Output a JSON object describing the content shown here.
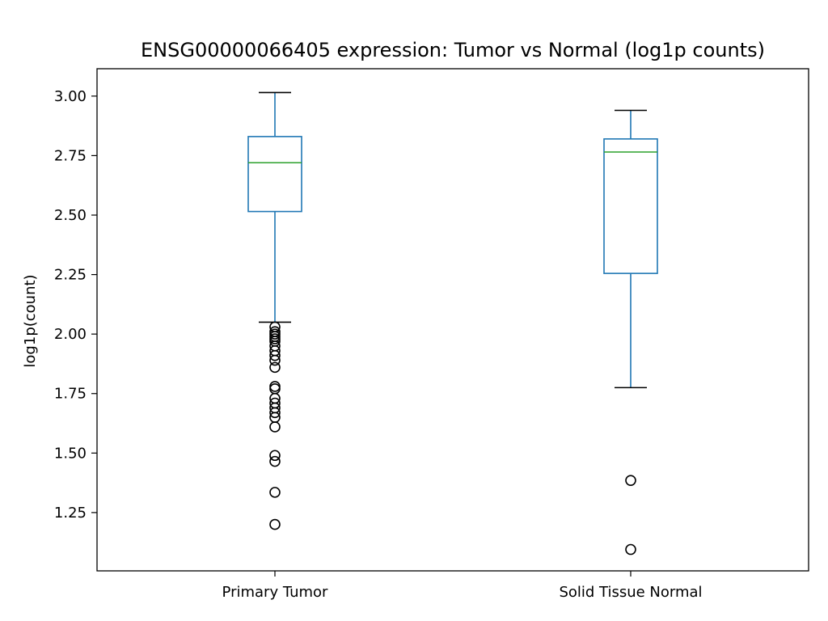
{
  "chart_data": {
    "type": "box",
    "title": "ENSG00000066405 expression: Tumor vs Normal (log1p counts)",
    "xlabel": "",
    "ylabel": "log1p(count)",
    "ylim": [
      1.005,
      3.115
    ],
    "yticks": [
      1.25,
      1.5,
      1.75,
      2.0,
      2.25,
      2.5,
      2.75,
      3.0
    ],
    "ytick_labels": [
      "1.25",
      "1.50",
      "1.75",
      "2.00",
      "2.25",
      "2.50",
      "2.75",
      "3.00"
    ],
    "grid": false,
    "categories": [
      "Primary Tumor",
      "Solid Tissue Normal"
    ],
    "boxes": [
      {
        "category": "Primary Tumor",
        "whisker_low": 2.05,
        "q1": 2.515,
        "median": 2.72,
        "q3": 2.83,
        "whisker_high": 3.015,
        "outliers": [
          2.03,
          2.01,
          2.0,
          1.99,
          1.98,
          1.97,
          1.95,
          1.93,
          1.91,
          1.89,
          1.86,
          1.78,
          1.77,
          1.73,
          1.71,
          1.69,
          1.67,
          1.65,
          1.61,
          1.49,
          1.465,
          1.335,
          1.2
        ]
      },
      {
        "category": "Solid Tissue Normal",
        "whisker_low": 1.775,
        "q1": 2.255,
        "median": 2.765,
        "q3": 2.82,
        "whisker_high": 2.94,
        "outliers": [
          1.385,
          1.095
        ]
      }
    ],
    "colors": {
      "box": "#1f77b4",
      "median": "#2ca02c",
      "whisker_cap": "#000000",
      "outlier": "#000000"
    }
  }
}
